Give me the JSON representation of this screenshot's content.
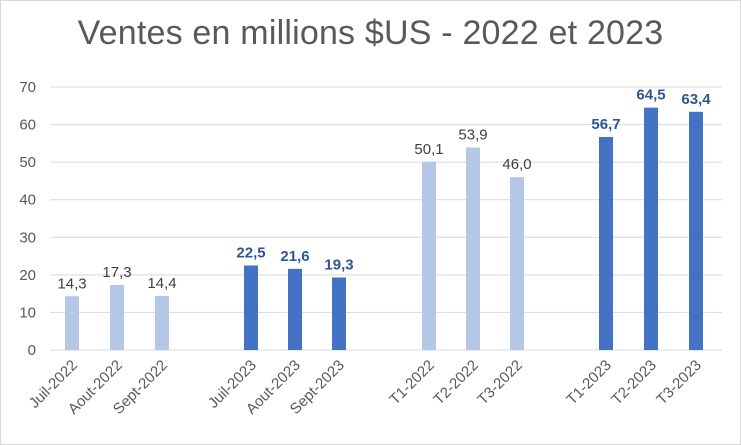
{
  "chart_data": {
    "type": "bar",
    "title": "Ventes en millions $US - 2022 et 2023",
    "xlabel": "",
    "ylabel": "",
    "ylim": [
      0,
      70
    ],
    "yticks": [
      0,
      10,
      20,
      30,
      40,
      50,
      60,
      70
    ],
    "grid": true,
    "categories": [
      "Juil-2022",
      "Aout-2022",
      "Sept-2022",
      "Juil-2023",
      "Aout-2023",
      "Sept-2023",
      "T1-2022",
      "T2-2022",
      "T3-2022",
      "T1-2023",
      "T2-2023",
      "T3-2023"
    ],
    "values": [
      14.3,
      17.3,
      14.4,
      22.5,
      21.6,
      19.3,
      50.1,
      53.9,
      46.0,
      56.7,
      64.5,
      63.4
    ],
    "labels": [
      "14,3",
      "17,3",
      "14,4",
      "22,5",
      "21,6",
      "19,3",
      "50,1",
      "53,9",
      "46,0",
      "56,7",
      "64,5",
      "63,4"
    ],
    "series_year": [
      "2022",
      "2022",
      "2022",
      "2023",
      "2023",
      "2023",
      "2022",
      "2022",
      "2022",
      "2023",
      "2023",
      "2023"
    ],
    "colors": {
      "2022": "#b4c7e7",
      "2023": "#4472c4",
      "label2023": "#2f5597",
      "label2022": "#404040",
      "grid": "#d9d9d9",
      "text": "#595959"
    }
  }
}
